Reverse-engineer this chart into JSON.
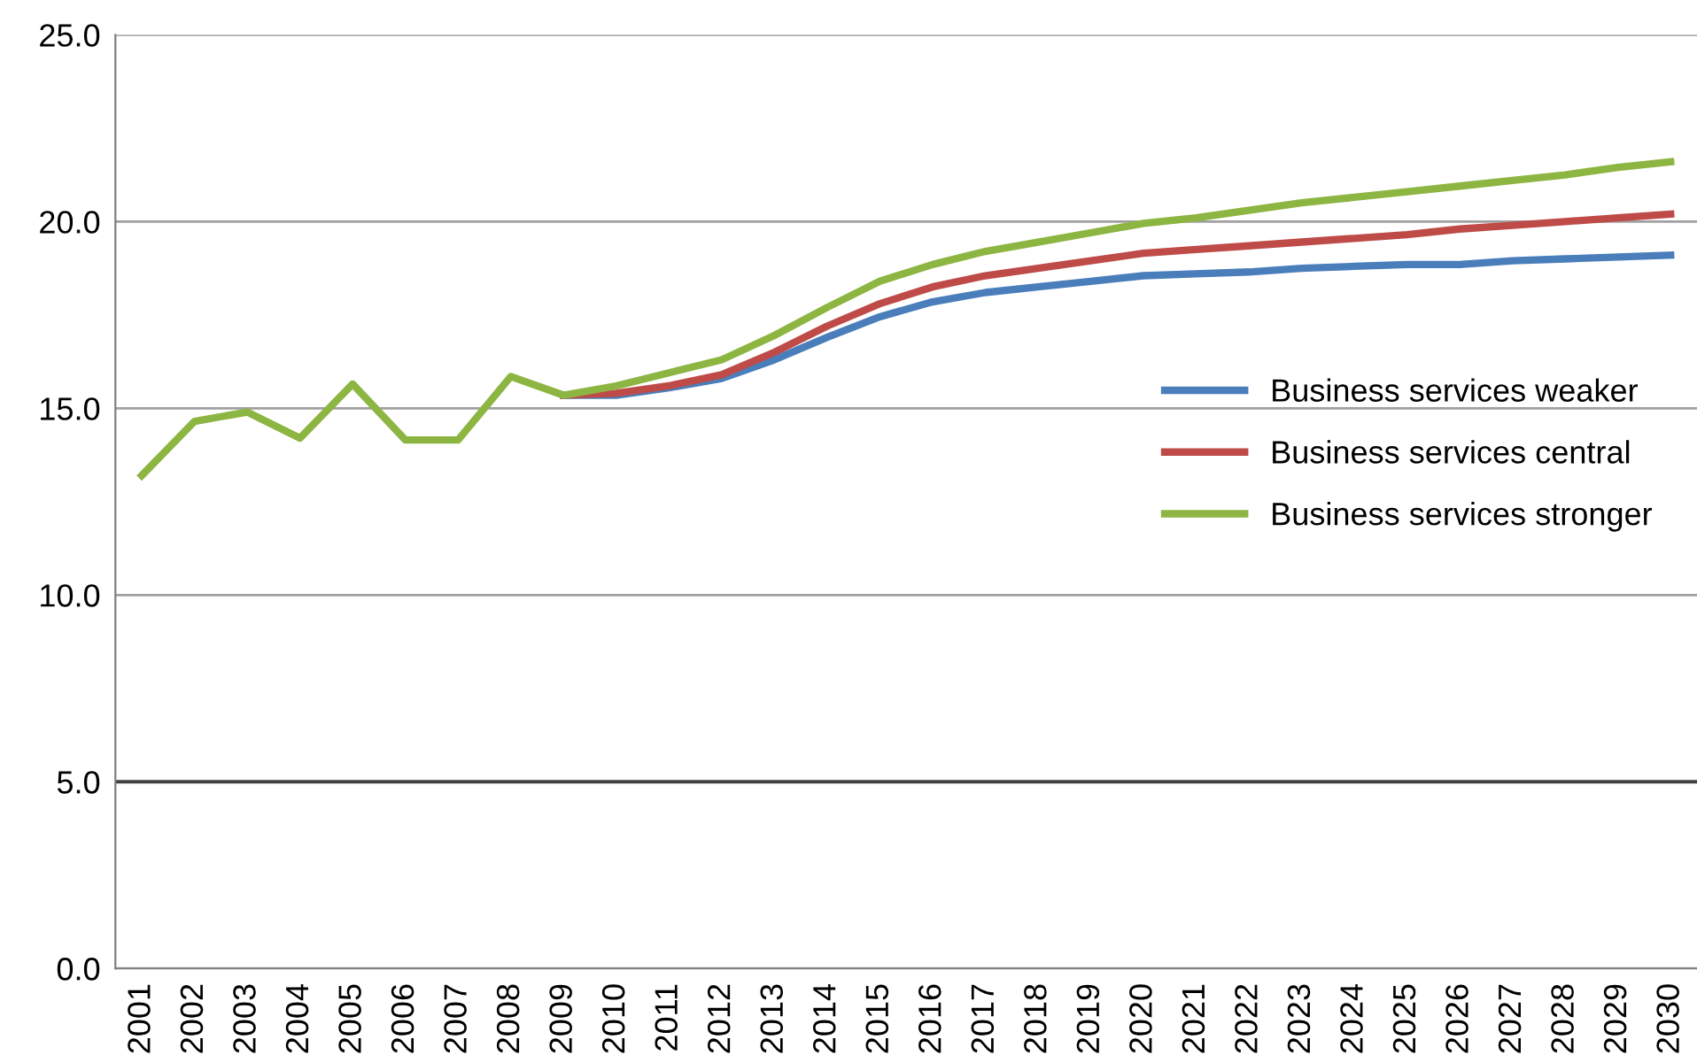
{
  "chart_data": {
    "type": "line",
    "categories": [
      "2001",
      "2002",
      "2003",
      "2004",
      "2005",
      "2006",
      "2007",
      "2008",
      "2009",
      "2010",
      "2011",
      "2012",
      "2013",
      "2014",
      "2015",
      "2016",
      "2017",
      "2018",
      "2019",
      "2020",
      "2021",
      "2022",
      "2023",
      "2024",
      "2025",
      "2026",
      "2027",
      "2028",
      "2029",
      "2030"
    ],
    "series": [
      {
        "name": "Business services weaker",
        "color": "#4a7ebb",
        "values": [
          null,
          null,
          null,
          null,
          null,
          null,
          null,
          null,
          15.35,
          15.35,
          15.55,
          15.8,
          16.3,
          16.9,
          17.45,
          17.85,
          18.1,
          18.25,
          18.4,
          18.55,
          18.6,
          18.65,
          18.75,
          18.8,
          18.85,
          18.85,
          18.95,
          19.0,
          19.05,
          19.1
        ]
      },
      {
        "name": "Business services central",
        "color": "#be4b48",
        "values": [
          null,
          null,
          null,
          null,
          null,
          null,
          null,
          null,
          15.35,
          15.4,
          15.6,
          15.9,
          16.5,
          17.2,
          17.8,
          18.25,
          18.55,
          18.75,
          18.95,
          19.15,
          19.25,
          19.35,
          19.45,
          19.55,
          19.65,
          19.8,
          19.9,
          20.0,
          20.1,
          20.2
        ]
      },
      {
        "name": "Business services stronger",
        "color": "#8db542",
        "values": [
          13.2,
          14.65,
          14.9,
          14.2,
          15.65,
          14.15,
          14.15,
          15.85,
          15.35,
          15.6,
          15.95,
          16.3,
          16.95,
          17.7,
          18.4,
          18.85,
          19.2,
          19.45,
          19.7,
          19.95,
          20.1,
          20.3,
          20.5,
          20.65,
          20.8,
          20.95,
          21.1,
          21.25,
          21.45,
          21.6
        ]
      }
    ],
    "ylim": [
      0,
      25
    ],
    "yticks": [
      {
        "value": 0,
        "label": "0.0"
      },
      {
        "value": 5,
        "label": "5.0"
      },
      {
        "value": 10,
        "label": "10.0"
      },
      {
        "value": 15,
        "label": "15.0"
      },
      {
        "value": 20,
        "label": "20.0"
      },
      {
        "value": 25,
        "label": "25.0"
      }
    ],
    "ref_lines": [
      {
        "axis": "y",
        "value": 5,
        "label": null,
        "color": "#404040"
      }
    ],
    "grid": "y",
    "legend": "right",
    "marker": "none",
    "line_style": "solid"
  }
}
